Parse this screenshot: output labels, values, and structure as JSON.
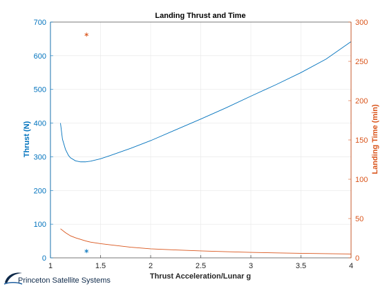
{
  "colors": {
    "left": "#0072BD",
    "right": "#D95319",
    "grid": "#e6e6e6",
    "axis": "#262626"
  },
  "chart_data": {
    "type": "line",
    "title": "Landing Thrust and Time",
    "xlabel": "Thrust Acceleration/Lunar g",
    "ylabel_left": "Thrust (N)",
    "ylabel_right": "Landing Time (min)",
    "xlim": [
      1,
      4
    ],
    "ylim_left": [
      0,
      700
    ],
    "ylim_right": [
      0,
      300
    ],
    "xticks": [
      1,
      1.5,
      2,
      2.5,
      3,
      3.5,
      4
    ],
    "xtick_labels": [
      "1",
      "1.5",
      "2",
      "2.5",
      "3",
      "3.5",
      "4"
    ],
    "yticks_left": [
      0,
      100,
      200,
      300,
      400,
      500,
      600,
      700
    ],
    "yticks_right": [
      0,
      50,
      100,
      150,
      200,
      250,
      300
    ],
    "grid": true,
    "series": [
      {
        "axis": "left",
        "color": "#0072BD",
        "x": [
          1.1,
          1.12,
          1.15,
          1.18,
          1.2,
          1.25,
          1.3,
          1.35,
          1.4,
          1.5,
          1.6,
          1.8,
          2.0,
          2.25,
          2.5,
          2.75,
          3.0,
          3.25,
          3.5,
          3.75,
          4.0
        ],
        "y": [
          400,
          352,
          322,
          304,
          297,
          288,
          285,
          285,
          287,
          294,
          304,
          325,
          348,
          380,
          412,
          445,
          480,
          514,
          550,
          590,
          642
        ]
      },
      {
        "axis": "right",
        "color": "#D95319",
        "x": [
          1.1,
          1.15,
          1.2,
          1.25,
          1.3,
          1.35,
          1.4,
          1.5,
          1.6,
          1.8,
          2.0,
          2.25,
          2.5,
          2.75,
          3.0,
          3.25,
          3.5,
          3.75,
          4.0
        ],
        "y": [
          37,
          32,
          28,
          25.5,
          23.5,
          21.5,
          20,
          18,
          16.5,
          13.5,
          11.5,
          10,
          8.8,
          7.8,
          7,
          6.3,
          5.8,
          5.3,
          4.9
        ]
      }
    ],
    "markers": [
      {
        "axis": "left",
        "x": 1.36,
        "y": 20,
        "color": "#0072BD"
      },
      {
        "axis": "right",
        "x": 1.36,
        "y": 284,
        "color": "#D95319"
      }
    ]
  },
  "logo": {
    "text": "Princeton Satellite Systems"
  }
}
